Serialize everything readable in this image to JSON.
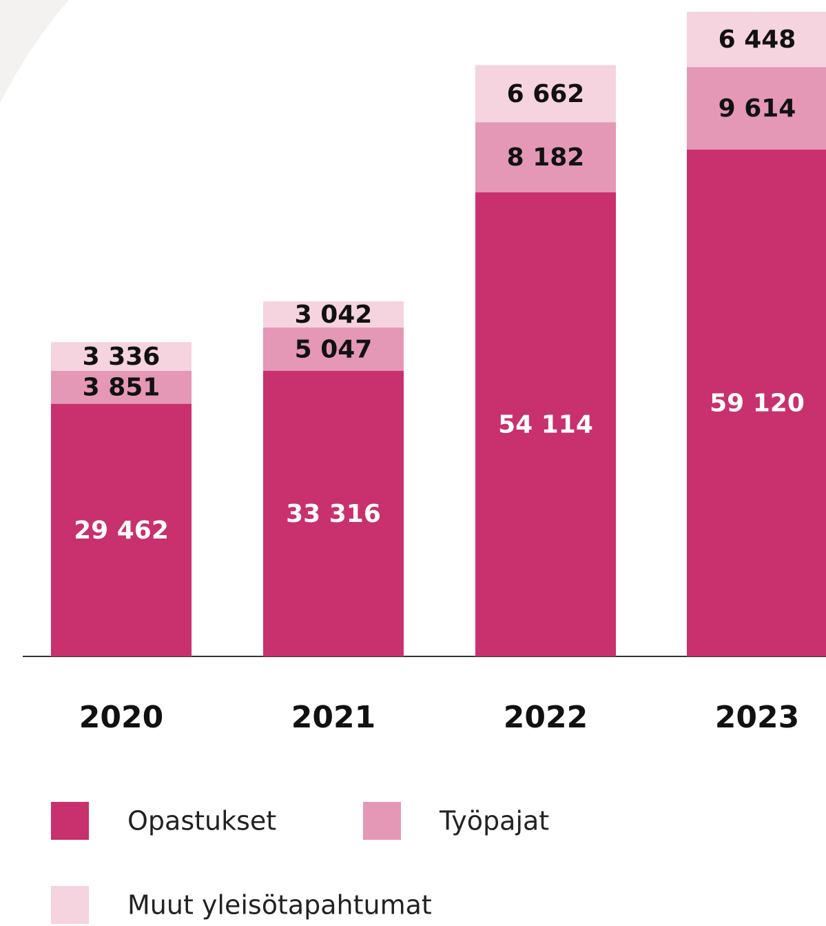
{
  "chart_data": {
    "type": "bar",
    "stacked": true,
    "categories": [
      "2020",
      "2021",
      "2022",
      "2023"
    ],
    "series": [
      {
        "name": "Opastukset",
        "color": "#c8306e",
        "values": [
          29462,
          33316,
          54114,
          59120
        ],
        "value_labels": [
          "29 462",
          "33 316",
          "54 114",
          "59 120"
        ]
      },
      {
        "name": "Työpajat",
        "color": "#e597b6",
        "values": [
          3851,
          5047,
          8182,
          9614
        ],
        "value_labels": [
          "3 851",
          "5 047",
          "8 182",
          "9 614"
        ]
      },
      {
        "name": "Muut yleisötapahtumat",
        "color": "#f5d3df",
        "values": [
          3336,
          3042,
          6662,
          6448
        ],
        "value_labels": [
          "3 336",
          "3 042",
          "6 662",
          "6 448"
        ]
      }
    ]
  }
}
